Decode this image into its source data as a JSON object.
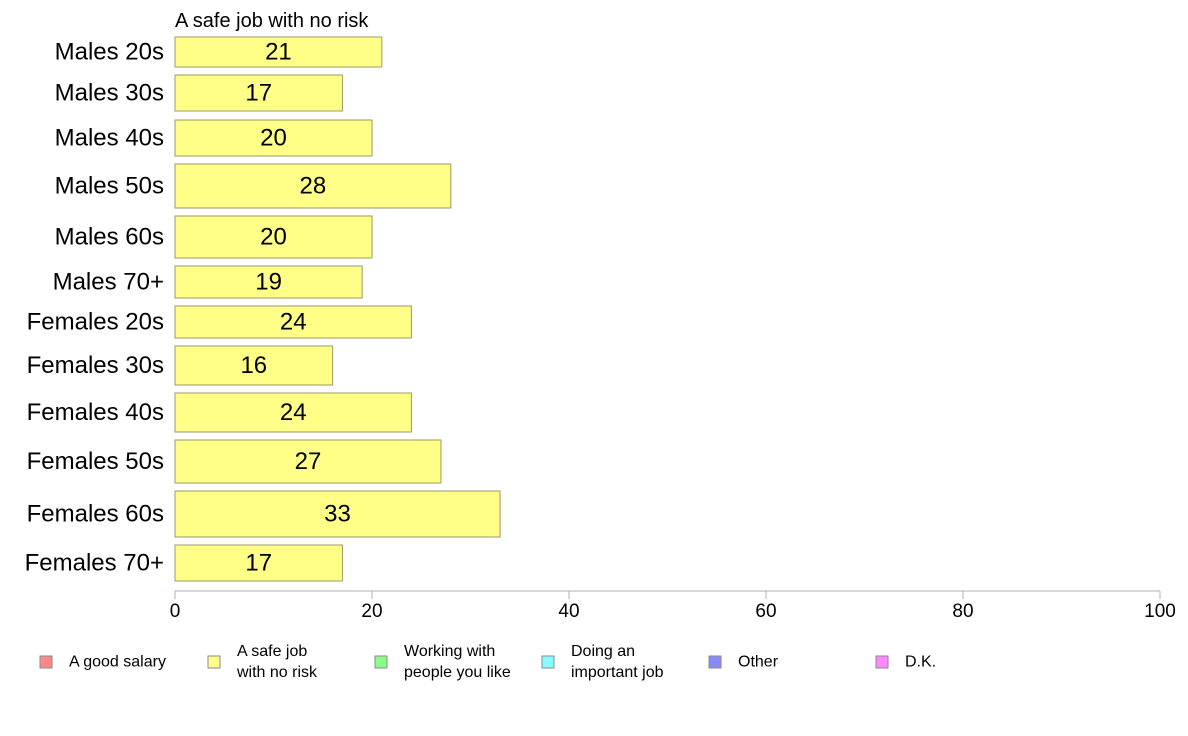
{
  "chart_data": {
    "type": "bar",
    "orientation": "horizontal",
    "title": "A safe job with no risk",
    "categories": [
      "Males 20s",
      "Males 30s",
      "Males 40s",
      "Males 50s",
      "Males 60s",
      "Males 70+",
      "Females 20s",
      "Females 30s",
      "Females 40s",
      "Females 50s",
      "Females 60s",
      "Females 70+"
    ],
    "values": [
      21,
      17,
      20,
      28,
      20,
      19,
      24,
      16,
      24,
      27,
      33,
      17
    ],
    "data_labels": [
      "21",
      "17",
      "20",
      "28",
      "20",
      "19",
      "24",
      "16",
      "24",
      "27",
      "33",
      "17"
    ],
    "bar_color": "#ffff88",
    "bar_border_color": "#9a9a6a",
    "xlim": [
      0,
      100
    ],
    "x_ticks": [
      0,
      20,
      40,
      60,
      80,
      100
    ],
    "x_tick_labels": [
      "0",
      "20",
      "40",
      "60",
      "80",
      "100"
    ],
    "xlabel": "",
    "ylabel": "",
    "grid": false,
    "legend": {
      "placement": "bottom",
      "entries": [
        {
          "lines": [
            "A good salary"
          ],
          "color": "#ff8888"
        },
        {
          "lines": [
            "A safe job",
            "with no risk"
          ],
          "color": "#ffff88"
        },
        {
          "lines": [
            "Working with",
            "people you like"
          ],
          "color": "#88ff88"
        },
        {
          "lines": [
            "Doing an",
            "important job"
          ],
          "color": "#88ffff"
        },
        {
          "lines": [
            "Other"
          ],
          "color": "#8888ff"
        },
        {
          "lines": [
            "D.K."
          ],
          "color": "#ff88ff"
        }
      ]
    }
  }
}
